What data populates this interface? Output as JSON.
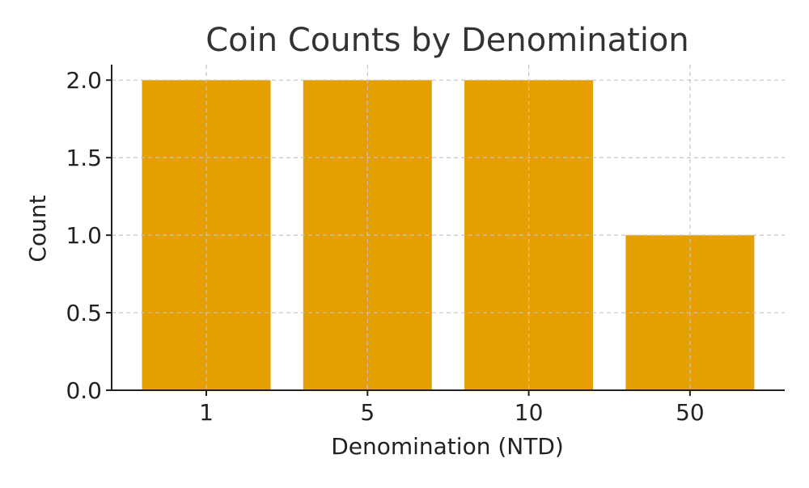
{
  "chart_data": {
    "type": "bar",
    "title": "Coin Counts by Denomination",
    "xlabel": "Denomination (NTD)",
    "ylabel": "Count",
    "categories": [
      "1",
      "5",
      "10",
      "50"
    ],
    "values": [
      2,
      2,
      2,
      1
    ],
    "ylim": [
      0,
      2.1
    ],
    "yticks": [
      "0.0",
      "0.5",
      "1.0",
      "1.5",
      "2.0"
    ],
    "grid": true,
    "bar_color": "#E69F00"
  }
}
